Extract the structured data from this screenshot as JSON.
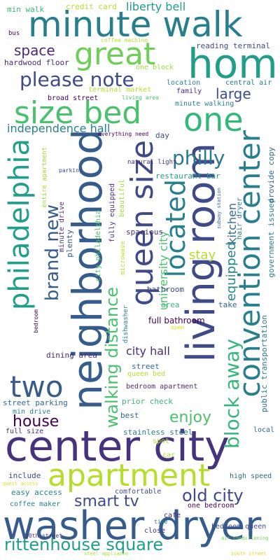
{
  "words": {
    "center_city": {
      "text": "center city",
      "color": "#46327e"
    },
    "washer_dryer": {
      "text": "washer dryer",
      "color": "#365c8d"
    },
    "neighborhood": {
      "text": "neighborhood",
      "color": "#365c8d"
    },
    "living_room": {
      "text": "living room",
      "color": "#3e4a89"
    },
    "minute_walk": {
      "text": "minute walk",
      "color": "#277f8e"
    },
    "home": {
      "text": "home",
      "color": "#1f9e89"
    },
    "queen_size": {
      "text": "queen size",
      "color": "#3e4a89"
    },
    "philadelphia": {
      "text": "philadelphia",
      "color": "#1f9e89"
    },
    "convention_center": {
      "text": "convention center",
      "color": "#277f8e"
    },
    "size_bed": {
      "text": "size bed",
      "color": "#4ac16d"
    },
    "great": {
      "text": "great",
      "color": "#6ece58"
    },
    "one": {
      "text": "one",
      "color": "#35b779"
    },
    "apartment": {
      "text": "apartment",
      "color": "#b5de2b"
    },
    "two": {
      "text": "two",
      "color": "#365c8d"
    },
    "located": {
      "text": "located",
      "color": "#277f8e"
    },
    "rittenhouse_square": {
      "text": "rittenhouse square",
      "color": "#1f9e89"
    },
    "walking_distance": {
      "text": "walking distance",
      "color": "#4ac16d"
    },
    "please_note": {
      "text": "please note",
      "color": "#3e4a89"
    },
    "block_away": {
      "text": "block away",
      "color": "#35b779"
    },
    "brand_new": {
      "text": "brand new",
      "color": "#365c8d"
    },
    "philly": {
      "text": "philly",
      "color": "#2a788e"
    },
    "old_city": {
      "text": "old city",
      "color": "#3e4a89"
    },
    "smart_tv": {
      "text": "smart tv",
      "color": "#3e4a89"
    },
    "house": {
      "text": "house",
      "color": "#440154"
    },
    "enjoy": {
      "text": "enjoy",
      "color": "#4ac16d"
    },
    "space": {
      "text": "space",
      "color": "#482878"
    },
    "large": {
      "text": "large",
      "color": "#3e4a89"
    },
    "liberty_bell": {
      "text": "liberty bell",
      "color": "#1f9e89"
    },
    "independence_hall": {
      "text": "independence hall",
      "color": "#277f8e"
    },
    "university_city": {
      "text": "university city",
      "color": "#4ac16d"
    },
    "equipped": {
      "text": "equipped",
      "color": "#26828e"
    },
    "kitchen": {
      "text": "kitchen",
      "color": "#31688e"
    },
    "stay": {
      "text": "stay",
      "color": "#b5de2b"
    },
    "city_hall": {
      "text": "city hall",
      "color": "#472d7b"
    },
    "full_bathroom": {
      "text": "full bathroom",
      "color": "#440154"
    },
    "min_walk": {
      "text": "min walk",
      "color": "#35b779"
    },
    "credit_card": {
      "text": "credit card",
      "color": "#b5de2b"
    },
    "bus": {
      "text": "bus",
      "color": "#440154"
    },
    "coffee_machine": {
      "text": "coffee machine",
      "color": "#b5de2b"
    },
    "reading_terminal": {
      "text": "reading terminal",
      "color": "#3e4a89"
    },
    "hardwood_floor": {
      "text": "hardwood floor",
      "color": "#482878"
    },
    "one_block": {
      "text": "one block",
      "color": "#a0da39"
    },
    "location": {
      "text": "location",
      "color": "#26828e"
    },
    "central_air": {
      "text": "central air",
      "color": "#2a788e"
    },
    "broad_street": {
      "text": "broad street",
      "color": "#440154"
    },
    "terminal_market": {
      "text": "terminal market",
      "color": "#b5de2b"
    },
    "family": {
      "text": "family",
      "color": "#472d7b"
    },
    "living_area": {
      "text": "living area",
      "color": "#4ac16d"
    },
    "minute_walking": {
      "text": "minute walking",
      "color": "#26828e"
    },
    "everything_need": {
      "text": "everything need",
      "color": "#440154"
    },
    "natural_light": {
      "text": "natural light",
      "color": "#46327e"
    },
    "day": {
      "text": "day",
      "color": "#3e4a89"
    },
    "restaurant_bar": {
      "text": "restaurant bar",
      "color": "#1f9e89"
    },
    "provide_copy": {
      "text": "provide copy",
      "color": "#31688e"
    },
    "government_issued": {
      "text": "government issued",
      "color": "#26828e"
    },
    "entire_apartment": {
      "text": "entire apartment",
      "color": "#a0da39"
    },
    "parking": {
      "text": "parking",
      "color": "#3e4a89"
    },
    "subway_station": {
      "text": "subway station",
      "color": "#31688e"
    },
    "hair_dryer": {
      "text": "hair dryer",
      "color": "#2a788e"
    },
    "minute_drive": {
      "text": "minute drive",
      "color": "#46327e"
    },
    "fully_equipped": {
      "text": "fully equipped",
      "color": "#46327e"
    },
    "beautiful": {
      "text": "beautiful",
      "color": "#a0da39"
    },
    "city_philadelphia": {
      "text": "city philadelphia",
      "color": "#4ac16d"
    },
    "plenty": {
      "text": "plenty",
      "color": "#365c8d"
    },
    "spacious": {
      "text": "spacious",
      "color": "#472d7b"
    },
    "microwave": {
      "text": "microwave",
      "color": "#b5de2b"
    },
    "public_transportation": {
      "text": "public transportation",
      "color": "#2a788e"
    },
    "bathroom": {
      "text": "bathroom",
      "color": "#3e4a89"
    },
    "area": {
      "text": "area",
      "color": "#35b779"
    },
    "take": {
      "text": "take",
      "color": "#31688e"
    },
    "bedroom": {
      "text": "bedroom",
      "color": "#440154"
    },
    "open": {
      "text": "open",
      "color": "#d9e01e"
    },
    "dishwasher": {
      "text": "dishwasher",
      "color": "#26828e"
    },
    "dining_area": {
      "text": "dining area",
      "color": "#482878"
    },
    "street": {
      "text": "street",
      "color": "#31688e"
    },
    "queen_bed": {
      "text": "queen bed",
      "color": "#b5de2b"
    },
    "bedroom_apartment": {
      "text": "bedroom apartment",
      "color": "#472d7b"
    },
    "street_parking": {
      "text": "street parking",
      "color": "#31688e"
    },
    "prior_check": {
      "text": "prior check",
      "color": "#35b779"
    },
    "min_drive": {
      "text": "min drive",
      "color": "#26828e"
    },
    "best": {
      "text": "best",
      "color": "#31688e"
    },
    "full_size": {
      "text": "full size",
      "color": "#472d7b"
    },
    "stainless_steel": {
      "text": "stainless steel",
      "color": "#26828e"
    },
    "local": {
      "text": "local",
      "color": "#31688e"
    },
    "spot": {
      "text": "spot",
      "color": "#b5de2b"
    },
    "car": {
      "text": "car",
      "color": "#b5de2b"
    },
    "include": {
      "text": "include",
      "color": "#3e4a89"
    },
    "guest_access": {
      "text": "guest access",
      "color": "#d9e01e"
    },
    "high_speed": {
      "text": "high speed",
      "color": "#31688e"
    },
    "easy_access": {
      "text": "easy access",
      "color": "#26828e"
    },
    "comfortable": {
      "text": "comfortable",
      "color": "#3e4a89"
    },
    "coffee_maker": {
      "text": "coffee maker",
      "color": "#26828e"
    },
    "one_bedroom": {
      "text": "one bedroom",
      "color": "#440154"
    },
    "cafe": {
      "text": "cafe",
      "color": "#482878"
    },
    "time": {
      "text": "time",
      "color": "#2a788e"
    },
    "close": {
      "text": "close",
      "color": "#46327e"
    },
    "bedroom_queen": {
      "text": "bedroom queen",
      "color": "#3e4a89"
    },
    "30th_street": {
      "text": "30th street",
      "color": "#46327e"
    },
    "air_conditioning": {
      "text": "air conditioning",
      "color": "#6ece58"
    },
    "steel_appliance": {
      "text": "steel appliance",
      "color": "#b5de2b"
    },
    "south_street": {
      "text": "south street",
      "color": "#d9e01e"
    }
  }
}
